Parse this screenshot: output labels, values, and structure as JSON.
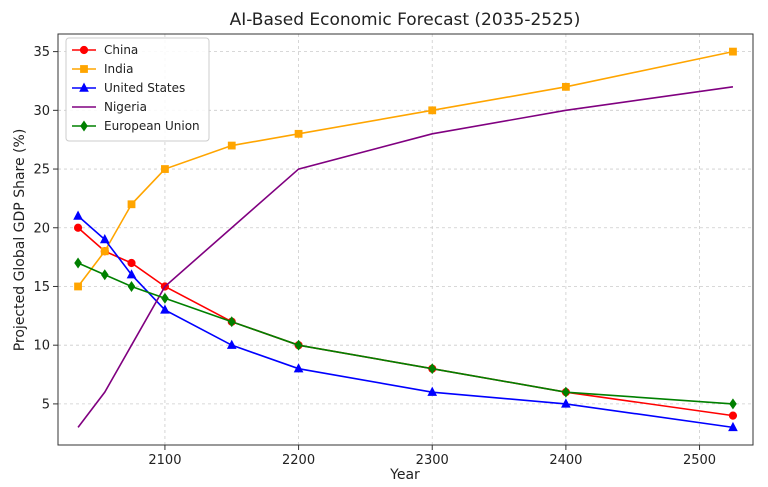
{
  "chart_data": {
    "type": "line",
    "title": "AI-Based Economic Forecast (2035-2525)",
    "xlabel": "Year",
    "ylabel": "Projected Global GDP Share (%)",
    "x": [
      2035,
      2055,
      2075,
      2100,
      2150,
      2200,
      2300,
      2400,
      2525
    ],
    "xlim": [
      2020,
      2540
    ],
    "ylim": [
      1.5,
      36.5
    ],
    "xticks": [
      2100,
      2200,
      2300,
      2400,
      2500
    ],
    "yticks": [
      5,
      10,
      15,
      20,
      25,
      30,
      35
    ],
    "grid": true,
    "legend_position": "top-left",
    "series": [
      {
        "name": "China",
        "color": "#ff0000",
        "marker": "circle",
        "values": [
          20,
          18,
          17,
          15,
          12,
          10,
          8,
          6,
          4
        ]
      },
      {
        "name": "India",
        "color": "#ffa500",
        "marker": "square",
        "values": [
          15,
          18,
          22,
          25,
          27,
          28,
          30,
          32,
          35
        ]
      },
      {
        "name": "United States",
        "color": "#0000ff",
        "marker": "triangle",
        "values": [
          21,
          19,
          16,
          13,
          10,
          8,
          6,
          5,
          3
        ]
      },
      {
        "name": "Nigeria",
        "color": "#800080",
        "marker": "none",
        "values": [
          3,
          6,
          10,
          15,
          20,
          25,
          28,
          30,
          32
        ]
      },
      {
        "name": "European Union",
        "color": "#008000",
        "marker": "diamond",
        "values": [
          17,
          16,
          15,
          14,
          12,
          10,
          8,
          6,
          5
        ]
      }
    ]
  }
}
